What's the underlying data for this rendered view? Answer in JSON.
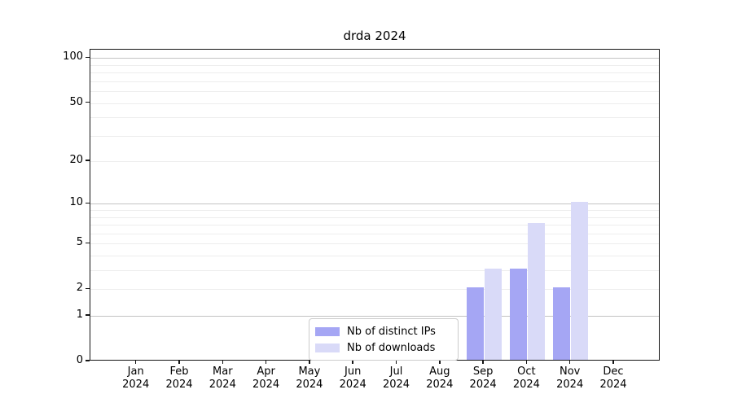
{
  "chart_data": {
    "type": "bar",
    "title": "drda 2024",
    "categories": [
      "Jan",
      "Feb",
      "Mar",
      "Apr",
      "May",
      "Jun",
      "Jul",
      "Aug",
      "Sep",
      "Oct",
      "Nov",
      "Dec"
    ],
    "category_year": "2024",
    "series": [
      {
        "name": "Nb of distinct IPs",
        "color": "#a5a6f4",
        "values": [
          0,
          0,
          0,
          0,
          0,
          0,
          0,
          0,
          2,
          3,
          2,
          0
        ]
      },
      {
        "name": "Nb of downloads",
        "color": "#d9daf8",
        "values": [
          0,
          0,
          0,
          0,
          0,
          0,
          0,
          0,
          3,
          7,
          10,
          0
        ]
      }
    ],
    "scale": "log1p",
    "ylim": [
      0,
      100
    ],
    "yticks": [
      100,
      50,
      20,
      10,
      5,
      2,
      1,
      0
    ],
    "grid": {
      "major": [
        1,
        10,
        100
      ],
      "minor": [
        2,
        3,
        4,
        5,
        6,
        7,
        8,
        9,
        20,
        30,
        40,
        50,
        60,
        70,
        80,
        90
      ]
    },
    "legend_position": "lower center",
    "colors": {
      "axis": "#141414",
      "grid_major": "#c3c3c3",
      "grid_minor": "#ededed",
      "legend_border": "#cccccc",
      "background": "#ffffff"
    }
  }
}
